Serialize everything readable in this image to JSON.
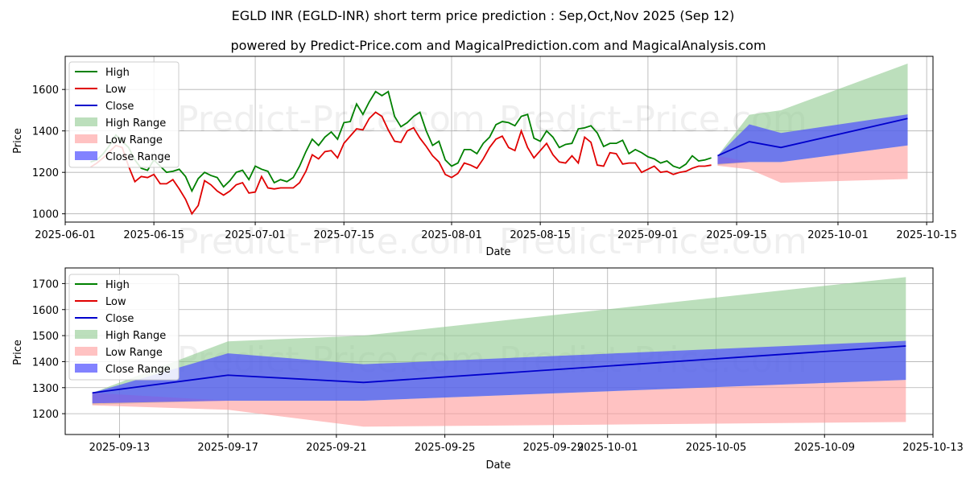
{
  "title": "EGLD INR (EGLD-INR) short term price prediction : Sep,Oct,Nov 2025 (Sep 12)",
  "subtitle": "powered by Predict-Price.com and MagicalPrediction.com and MagicalAnalysis.com",
  "watermark": "Predict-Price.com",
  "colors": {
    "high": "#008000",
    "low": "#e00000",
    "close": "#0000cc",
    "high_range": "#8fca8f",
    "low_range": "#ff9999",
    "close_range": "#4d4dff"
  },
  "legend": [
    "High",
    "Low",
    "Close",
    "High Range",
    "Low Range",
    "Close Range"
  ],
  "chart_data": [
    {
      "type": "line",
      "panel": "top",
      "xlabel": "Date",
      "ylabel": "Price",
      "xlim": [
        "2025-06-01",
        "2025-10-16"
      ],
      "ylim": [
        960,
        1760
      ],
      "xticks": [
        "2025-06-01",
        "2025-06-15",
        "2025-07-01",
        "2025-07-15",
        "2025-08-01",
        "2025-08-15",
        "2025-09-01",
        "2025-09-15",
        "2025-10-01",
        "2025-10-15"
      ],
      "yticks": [
        1000,
        1200,
        1400,
        1600
      ],
      "grid": true,
      "legend_position": "upper-left",
      "history": {
        "start": "2025-06-05",
        "high": [
          1250,
          1260,
          1290,
          1330,
          1380,
          1350,
          1320,
          1260,
          1220,
          1210,
          1260,
          1230,
          1200,
          1205,
          1215,
          1180,
          1110,
          1170,
          1200,
          1185,
          1175,
          1130,
          1160,
          1200,
          1210,
          1165,
          1230,
          1215,
          1205,
          1150,
          1165,
          1155,
          1175,
          1230,
          1300,
          1360,
          1330,
          1370,
          1395,
          1360,
          1440,
          1445,
          1530,
          1480,
          1540,
          1590,
          1570,
          1590,
          1470,
          1420,
          1440,
          1470,
          1490,
          1400,
          1330,
          1350,
          1260,
          1230,
          1245,
          1310,
          1310,
          1290,
          1340,
          1370,
          1430,
          1445,
          1440,
          1425,
          1470,
          1480,
          1365,
          1350,
          1400,
          1370,
          1320,
          1335,
          1340,
          1410,
          1415,
          1425,
          1390,
          1325,
          1340,
          1340,
          1355,
          1290,
          1310,
          1295,
          1275,
          1265,
          1245,
          1255,
          1230,
          1220,
          1240,
          1280,
          1255,
          1260,
          1270
        ],
        "low": [
          1225,
          1245,
          1270,
          1300,
          1330,
          1320,
          1230,
          1155,
          1180,
          1175,
          1190,
          1145,
          1145,
          1165,
          1120,
          1070,
          1000,
          1040,
          1160,
          1140,
          1110,
          1090,
          1110,
          1140,
          1150,
          1100,
          1105,
          1180,
          1125,
          1120,
          1125,
          1125,
          1125,
          1150,
          1205,
          1285,
          1265,
          1300,
          1305,
          1270,
          1340,
          1375,
          1410,
          1405,
          1460,
          1490,
          1470,
          1405,
          1350,
          1345,
          1400,
          1415,
          1365,
          1325,
          1280,
          1250,
          1190,
          1175,
          1195,
          1245,
          1235,
          1220,
          1265,
          1320,
          1360,
          1375,
          1320,
          1305,
          1400,
          1320,
          1270,
          1305,
          1340,
          1285,
          1250,
          1245,
          1280,
          1245,
          1370,
          1345,
          1235,
          1230,
          1295,
          1290,
          1240,
          1245,
          1245,
          1200,
          1215,
          1230,
          1200,
          1205,
          1190,
          1200,
          1205,
          1220,
          1230,
          1230,
          1235
        ]
      },
      "forecast": {
        "dates": [
          "2025-09-12",
          "2025-09-17",
          "2025-09-22",
          "2025-10-12"
        ],
        "close": [
          1280,
          1348,
          1320,
          1460
        ],
        "high_range": [
          [
            1235,
            1280
          ],
          [
            1250,
            1478
          ],
          [
            1250,
            1500
          ],
          [
            1330,
            1725
          ]
        ],
        "low_range": [
          [
            1232,
            1280
          ],
          [
            1215,
            1250
          ],
          [
            1150,
            1250
          ],
          [
            1168,
            1330
          ]
        ],
        "close_range": [
          [
            1240,
            1280
          ],
          [
            1250,
            1432
          ],
          [
            1250,
            1390
          ],
          [
            1330,
            1480
          ]
        ]
      }
    },
    {
      "type": "area",
      "panel": "bottom",
      "xlabel": "Date",
      "ylabel": "Price",
      "xlim": [
        "2025-09-11",
        "2025-10-13"
      ],
      "ylim": [
        1120,
        1760
      ],
      "xticks": [
        "2025-09-13",
        "2025-09-17",
        "2025-09-21",
        "2025-09-25",
        "2025-09-29",
        "2025-10-01",
        "2025-10-05",
        "2025-10-09",
        "2025-10-13"
      ],
      "yticks": [
        1200,
        1300,
        1400,
        1500,
        1600,
        1700
      ],
      "grid": true,
      "legend_position": "upper-left",
      "forecast": {
        "dates": [
          "2025-09-12",
          "2025-09-17",
          "2025-09-22",
          "2025-10-12"
        ],
        "close": [
          1280,
          1348,
          1320,
          1460
        ],
        "high_range": [
          [
            1235,
            1280
          ],
          [
            1250,
            1478
          ],
          [
            1250,
            1500
          ],
          [
            1330,
            1725
          ]
        ],
        "low_range": [
          [
            1232,
            1280
          ],
          [
            1215,
            1250
          ],
          [
            1150,
            1250
          ],
          [
            1168,
            1330
          ]
        ],
        "close_range": [
          [
            1240,
            1280
          ],
          [
            1250,
            1432
          ],
          [
            1250,
            1390
          ],
          [
            1330,
            1480
          ]
        ]
      }
    }
  ]
}
